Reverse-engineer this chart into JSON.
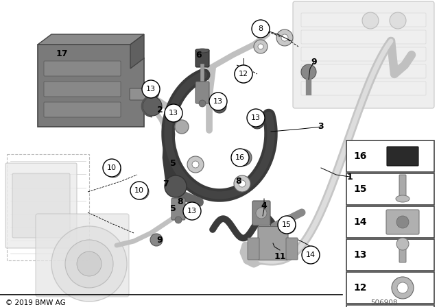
{
  "bg_color": "#ffffff",
  "copyright": "© 2019 BMW AG",
  "part_number": "506908",
  "silver": "#c0c0c0",
  "dark_hose": "#3a3a3a",
  "light_grey": "#d0d0d0",
  "mid_grey": "#909090",
  "dark_grey": "#606060",
  "faint_grey": "#e0e0e0",
  "legend_border": "#444444",
  "text_black": "#000000",
  "label_font": 7.5,
  "plain_font": 9
}
